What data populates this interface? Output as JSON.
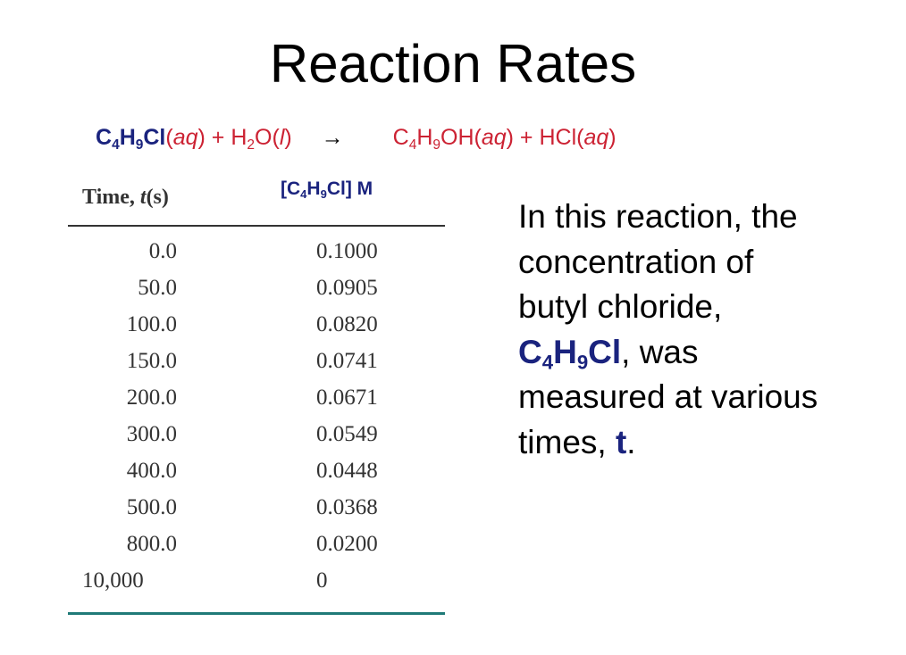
{
  "title": "Reaction Rates",
  "equation": {
    "reactant1": {
      "c": "C",
      "s1": "4",
      "h": "H",
      "s2": "9",
      "rest": "Cl"
    },
    "reactant1_phase": "(aq)",
    "plus1": "+",
    "reactant2": {
      "h": "H",
      "s": "2",
      "rest": "O"
    },
    "reactant2_phase": "(l)",
    "arrow": "→",
    "product1": {
      "c": "C",
      "s1": "4",
      "h": "H",
      "s2": "9",
      "rest": "OH"
    },
    "product1_phase": "(aq)",
    "plus2": "+",
    "product2": "HCl",
    "product2_phase": "(aq)"
  },
  "table": {
    "header_time": "Time, t(s)",
    "header_conc": {
      "open": "[C",
      "s1": "4",
      "h": "H",
      "s2": "9",
      "rest": "Cl] M"
    },
    "rows": [
      {
        "time": "0.0",
        "conc": "0.1000"
      },
      {
        "time": "50.0",
        "conc": "0.0905"
      },
      {
        "time": "100.0",
        "conc": "0.0820"
      },
      {
        "time": "150.0",
        "conc": "0.0741"
      },
      {
        "time": "200.0",
        "conc": "0.0671"
      },
      {
        "time": "300.0",
        "conc": "0.0549"
      },
      {
        "time": "400.0",
        "conc": "0.0448"
      },
      {
        "time": "500.0",
        "conc": "0.0368"
      },
      {
        "time": "800.0",
        "conc": "0.0200"
      },
      {
        "time": "10,000",
        "conc": "0"
      }
    ]
  },
  "description": {
    "line1": "In this reaction, the",
    "line2": "concentration of",
    "line3": "butyl chloride,",
    "formula": {
      "c": "C",
      "s1": "4",
      "h": "H",
      "s2": "9",
      "rest": "Cl"
    },
    "after_formula": ", was",
    "line5": "measured at various",
    "line6_pre": "times, ",
    "t": "t",
    "line6_post": "."
  }
}
